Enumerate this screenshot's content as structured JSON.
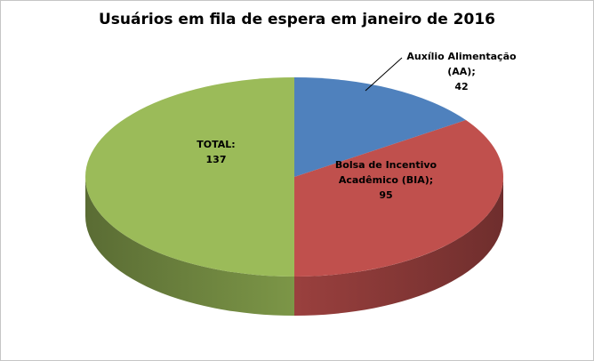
{
  "window": {
    "background": "#FFFFFF",
    "border": "#C6C6C6"
  },
  "chart_data": {
    "type": "pie",
    "title": "Usuários em fila de espera em janeiro de 2016",
    "effect_3d": true,
    "start_angle_deg": 0,
    "clockwise": true,
    "legend_position": "none",
    "slices": [
      {
        "name": "Auxílio Alimentação (AA)",
        "value": 42,
        "color": "#4F81BD"
      },
      {
        "name": "Bolsa de Incentivo Acadêmico (BIA)",
        "value": 95,
        "color": "#C0504D"
      },
      {
        "name": "TOTAL",
        "value": 137,
        "color": "#9BBB59"
      }
    ]
  },
  "labels": {
    "aa": {
      "lines": [
        "Auxílio Alimentação",
        "(AA);",
        "42"
      ]
    },
    "bia": {
      "lines": [
        "Bolsa de Incentivo",
        "Acadêmico (BIA);",
        "95"
      ]
    },
    "total": {
      "lines": [
        "TOTAL:",
        "137"
      ]
    }
  },
  "colors": {
    "text": "#000000",
    "leader_line": "#000000"
  }
}
